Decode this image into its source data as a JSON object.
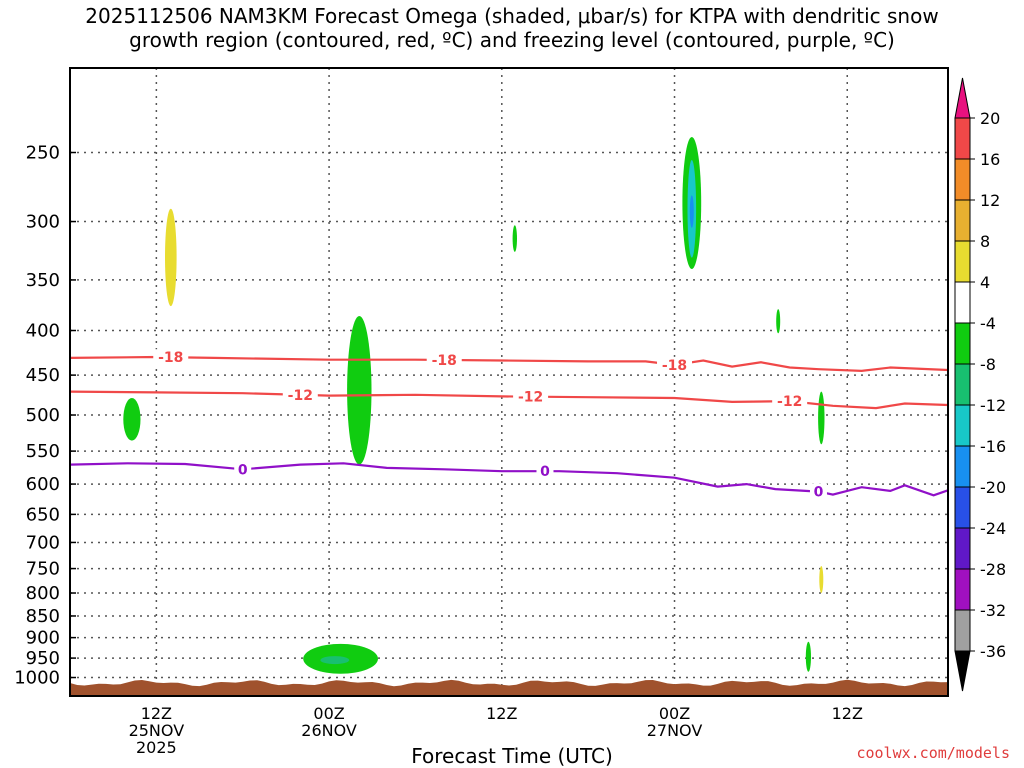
{
  "title_line1": "2025112506 NAM3KM Forecast Omega (shaded, μbar/s) for KTPA with dendritic snow",
  "title_line2": "growth region (contoured, red, ºC) and freezing level (contoured, purple, ºC)",
  "credit": "coolwx.com/models",
  "chart_data": {
    "type": "contour",
    "title": "2025112506 NAM3KM Forecast Omega (shaded, μbar/s) for KTPA with dendritic snow growth region (contoured, red, ºC) and freezing level (contoured, purple, ºC)",
    "xlabel": "Forecast Time (UTC)",
    "ylabel": "",
    "xlim": [
      0,
      61
    ],
    "ylim": [
      1050,
      200
    ],
    "y_scale": "log",
    "grid": true,
    "y_ticks": [
      250,
      300,
      350,
      400,
      450,
      500,
      550,
      600,
      650,
      700,
      750,
      800,
      850,
      900,
      950,
      1000
    ],
    "x_ticks": [
      {
        "hour": 6,
        "label1": "12Z",
        "label2": "25NOV",
        "label3": "2025"
      },
      {
        "hour": 18,
        "label1": "00Z",
        "label2": "26NOV",
        "label3": ""
      },
      {
        "hour": 30,
        "label1": "12Z",
        "label2": "",
        "label3": ""
      },
      {
        "hour": 42,
        "label1": "00Z",
        "label2": "27NOV",
        "label3": ""
      },
      {
        "hour": 54,
        "label1": "12Z",
        "label2": "",
        "label3": ""
      }
    ],
    "colorbar": {
      "levels": [
        20,
        16,
        12,
        8,
        4,
        -4,
        -8,
        -12,
        -16,
        -20,
        -24,
        -28,
        -32,
        -36
      ],
      "colors": [
        "#e8117f",
        "#f04848",
        "#f28c28",
        "#e8b030",
        "#e8dc30",
        "#ffffff",
        "#10cc10",
        "#18c070",
        "#18c8c8",
        "#1890f0",
        "#2850e8",
        "#6018c8",
        "#a010c0",
        "#a0a0a0",
        "#000000"
      ]
    },
    "contours": [
      {
        "name": "-18",
        "color": "#f04848",
        "label_hours": [
          7,
          26,
          42
        ],
        "points": [
          [
            0,
            430
          ],
          [
            6,
            429
          ],
          [
            10,
            430
          ],
          [
            18,
            432
          ],
          [
            24,
            432
          ],
          [
            30,
            433
          ],
          [
            36,
            434
          ],
          [
            40,
            434
          ],
          [
            42,
            438
          ],
          [
            44,
            433
          ],
          [
            46,
            440
          ],
          [
            48,
            435
          ],
          [
            50,
            441
          ],
          [
            52,
            443
          ],
          [
            55,
            445
          ],
          [
            57,
            441
          ],
          [
            61,
            444
          ]
        ]
      },
      {
        "name": "-12",
        "color": "#f04848",
        "label_hours": [
          16,
          32,
          50
        ],
        "points": [
          [
            0,
            470
          ],
          [
            6,
            471
          ],
          [
            12,
            472
          ],
          [
            18,
            475
          ],
          [
            24,
            474
          ],
          [
            30,
            476
          ],
          [
            36,
            477
          ],
          [
            42,
            478
          ],
          [
            46,
            483
          ],
          [
            50,
            482
          ],
          [
            53,
            488
          ],
          [
            56,
            491
          ],
          [
            58,
            485
          ],
          [
            61,
            487
          ]
        ]
      },
      {
        "name": "0",
        "color": "#9010c8",
        "label_hours": [
          12,
          33,
          52
        ],
        "points": [
          [
            0,
            570
          ],
          [
            4,
            568
          ],
          [
            8,
            569
          ],
          [
            12,
            577
          ],
          [
            16,
            570
          ],
          [
            19,
            568
          ],
          [
            22,
            575
          ],
          [
            26,
            577
          ],
          [
            30,
            580
          ],
          [
            34,
            580
          ],
          [
            38,
            583
          ],
          [
            42,
            590
          ],
          [
            45,
            604
          ],
          [
            47,
            600
          ],
          [
            49,
            608
          ],
          [
            52,
            612
          ],
          [
            53,
            617
          ],
          [
            55,
            605
          ],
          [
            57,
            611
          ],
          [
            58,
            602
          ],
          [
            60,
            618
          ],
          [
            61,
            610
          ]
        ]
      }
    ],
    "shaded": [
      {
        "value": 6,
        "color": "#e8dc30",
        "center_hour": 7,
        "p_top": 290,
        "p_bottom": 375,
        "half_width_hours": 0.4
      },
      {
        "value": -6,
        "color": "#10cc10",
        "center_hour": 4.3,
        "p_top": 478,
        "p_bottom": 535,
        "half_width_hours": 0.6
      },
      {
        "value": -6,
        "color": "#10cc10",
        "center_hour": 20.1,
        "p_top": 385,
        "p_bottom": 570,
        "half_width_hours": 0.85
      },
      {
        "value": -6,
        "color": "#10cc10",
        "center_hour": 30.9,
        "p_top": 303,
        "p_bottom": 325,
        "half_width_hours": 0.15
      },
      {
        "value": -6,
        "color": "#10cc10",
        "center_hour": 43.2,
        "p_top": 240,
        "p_bottom": 340,
        "half_width_hours": 0.65
      },
      {
        "value": -14,
        "color": "#18c8c8",
        "center_hour": 43.2,
        "p_top": 255,
        "p_bottom": 330,
        "half_width_hours": 0.3
      },
      {
        "value": -18,
        "color": "#1890f0",
        "center_hour": 43.2,
        "p_top": 280,
        "p_bottom": 305,
        "half_width_hours": 0.12
      },
      {
        "value": -6,
        "color": "#10cc10",
        "center_hour": 49.2,
        "p_top": 378,
        "p_bottom": 403,
        "half_width_hours": 0.12
      },
      {
        "value": -6,
        "color": "#10cc10",
        "center_hour": 52.2,
        "p_top": 470,
        "p_bottom": 540,
        "half_width_hours": 0.22
      },
      {
        "value": 6,
        "color": "#e8dc30",
        "center_hour": 52.2,
        "p_top": 745,
        "p_bottom": 800,
        "half_width_hours": 0.12
      },
      {
        "value": -6,
        "color": "#10cc10",
        "center_hour": 51.3,
        "p_top": 910,
        "p_bottom": 985,
        "half_width_hours": 0.18
      },
      {
        "value": -6,
        "color": "#10cc10",
        "center_hour": 18.8,
        "p_top": 915,
        "p_bottom": 990,
        "half_width_hours": 2.6
      },
      {
        "value": -12,
        "color": "#18c070",
        "center_hour": 18.4,
        "p_top": 945,
        "p_bottom": 965,
        "half_width_hours": 1.0
      }
    ]
  }
}
